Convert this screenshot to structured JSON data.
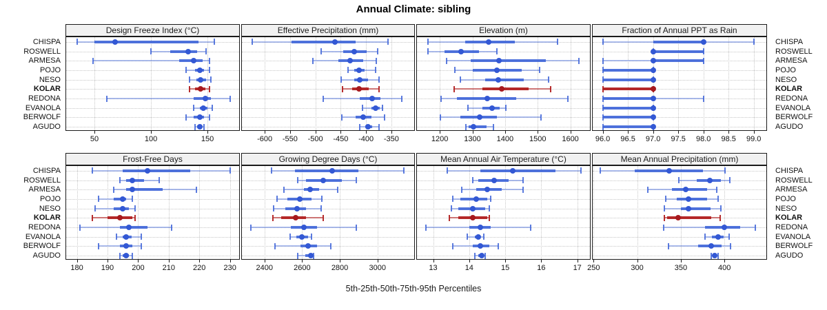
{
  "title": "Annual Climate: sibling",
  "caption": "5th-25th-50th-75th-95th Percentiles",
  "colors": {
    "series_dot": "#3358d4",
    "series_iqr": "rgba(62,100,216,0.88)",
    "series_range": "rgba(62,100,216,0.42)",
    "series_cap": "rgba(62,100,216,0.85)",
    "highlight_dot": "#a6191e",
    "highlight_iqr": "rgba(178,34,34,0.95)",
    "highlight_range": "rgba(178,34,34,0.6)",
    "highlight_cap": "rgba(178,34,34,0.95)",
    "strip_bg": "#f1f1f1",
    "panel_border": "#1a1a1a",
    "grid": "#c6c6c6"
  },
  "chart_data": {
    "type": "dotplot",
    "note": "dot = 50th percentile, thick segment = 25th-75th, thin segment with end caps = 5th-95th",
    "percentiles": [
      5,
      25,
      50,
      75,
      95
    ],
    "rows": [
      "CHISPA",
      "ROSWELL",
      "ARMESA",
      "POJO",
      "NESO",
      "KOLAR",
      "REDONA",
      "EVANOLA",
      "BERWOLF",
      "AGUDO"
    ],
    "highlighted_row": "KOLAR",
    "panels": [
      {
        "title": "Design Freeze Index (°C)",
        "grid_row": 0,
        "grid_col": 0,
        "xlim": [
          25,
          178
        ],
        "ticks": [
          50,
          100,
          150
        ],
        "tick_labels": [
          "50",
          "100",
          "150"
        ],
        "values": [
          [
            35,
            50,
            68,
            142,
            156
          ],
          [
            100,
            117,
            133,
            141,
            149
          ],
          [
            49,
            125,
            138,
            146,
            152
          ],
          [
            131,
            139,
            143,
            147,
            152
          ],
          [
            134,
            140,
            144,
            149,
            153
          ],
          [
            134,
            139,
            144,
            148,
            152
          ],
          [
            61,
            138,
            148,
            153,
            170
          ],
          [
            138,
            143,
            146,
            150,
            154
          ],
          [
            131,
            138,
            143,
            147,
            152
          ],
          [
            139,
            141,
            143,
            145,
            147
          ]
        ]
      },
      {
        "title": "Effective Precipitation (mm)",
        "grid_row": 0,
        "grid_col": 1,
        "xlim": [
          -645,
          -305
        ],
        "ticks": [
          -600,
          -550,
          -500,
          -450,
          -400,
          -350
        ],
        "tick_labels": [
          "-600",
          "-550",
          "-500",
          "-450",
          "-400",
          "-350"
        ],
        "values": [
          [
            -625,
            -547,
            -462,
            -420,
            -357
          ],
          [
            -488,
            -445,
            -424,
            -399,
            -377
          ],
          [
            -505,
            -455,
            -432,
            -405,
            -380
          ],
          [
            -436,
            -424,
            -414,
            -403,
            -381
          ],
          [
            -449,
            -423,
            -412,
            -396,
            -374
          ],
          [
            -447,
            -428,
            -414,
            -395,
            -375
          ],
          [
            -484,
            -412,
            -388,
            -372,
            -330
          ],
          [
            -407,
            -390,
            -381,
            -373,
            -367
          ],
          [
            -448,
            -420,
            -406,
            -389,
            -364
          ],
          [
            -412,
            -402,
            -396,
            -388,
            -375
          ]
        ]
      },
      {
        "title": "Elevation (m)",
        "grid_row": 0,
        "grid_col": 2,
        "xlim": [
          1130,
          1660
        ],
        "ticks": [
          1200,
          1300,
          1400,
          1500,
          1600
        ],
        "tick_labels": [
          "1200",
          "1300",
          "1400",
          "1500",
          "1600"
        ],
        "values": [
          [
            1163,
            1277,
            1349,
            1430,
            1560
          ],
          [
            1164,
            1215,
            1266,
            1320,
            1374
          ],
          [
            1220,
            1295,
            1382,
            1525,
            1626
          ],
          [
            1247,
            1300,
            1374,
            1452,
            1505
          ],
          [
            1264,
            1338,
            1380,
            1458,
            1533
          ],
          [
            1243,
            1330,
            1390,
            1473,
            1540
          ],
          [
            1204,
            1252,
            1345,
            1435,
            1592
          ],
          [
            1287,
            1330,
            1360,
            1383,
            1403
          ],
          [
            1202,
            1262,
            1322,
            1375,
            1510
          ],
          [
            1279,
            1289,
            1303,
            1344,
            1365
          ]
        ]
      },
      {
        "title": "Fraction of Annual PPT as Rain",
        "grid_row": 0,
        "grid_col": 3,
        "xlim": [
          95.8,
          99.25
        ],
        "ticks": [
          96,
          96.5,
          97,
          97.5,
          98,
          98.5,
          99
        ],
        "tick_labels": [
          "96.0",
          "96.5",
          "97.0",
          "97.5",
          "98.0",
          "98.5",
          "99.0"
        ],
        "values": [
          [
            96,
            97,
            98,
            98,
            99
          ],
          [
            97,
            97,
            97,
            98,
            98
          ],
          [
            96,
            97,
            97,
            98,
            98
          ],
          [
            96,
            96,
            97,
            97,
            97
          ],
          [
            96,
            96,
            97,
            97,
            97
          ],
          [
            96,
            96,
            97,
            97,
            97
          ],
          [
            96,
            96,
            97,
            97,
            98
          ],
          [
            96,
            96,
            97,
            97,
            97
          ],
          [
            96,
            96,
            97,
            97,
            97
          ],
          [
            96,
            96,
            97,
            97,
            97
          ]
        ]
      },
      {
        "title": "Frost-Free Days",
        "grid_row": 1,
        "grid_col": 0,
        "xlim": [
          176.5,
          233
        ],
        "ticks": [
          180,
          190,
          200,
          210,
          220,
          230
        ],
        "tick_labels": [
          "180",
          "190",
          "200",
          "210",
          "220",
          "230"
        ],
        "values": [
          [
            185,
            195,
            203,
            217,
            230
          ],
          [
            194,
            196,
            198,
            202,
            207
          ],
          [
            192,
            196,
            198,
            208,
            219
          ],
          [
            187,
            192,
            195,
            196,
            198
          ],
          [
            186,
            192,
            195,
            197,
            199
          ],
          [
            185,
            190,
            194,
            198,
            199
          ],
          [
            181,
            194,
            197,
            203,
            211
          ],
          [
            193,
            195,
            196,
            198,
            201
          ],
          [
            187,
            194,
            196,
            198,
            201
          ],
          [
            194,
            195,
            196,
            197,
            198
          ]
        ]
      },
      {
        "title": "Growing Degree Days (°C)",
        "grid_row": 1,
        "grid_col": 1,
        "xlim": [
          2280,
          3195
        ],
        "ticks": [
          2400,
          2600,
          2800,
          3000
        ],
        "tick_labels": [
          "2400",
          "2600",
          "2800",
          "3000"
        ],
        "values": [
          [
            2436,
            2560,
            2760,
            2900,
            3140
          ],
          [
            2578,
            2620,
            2713,
            2810,
            2887
          ],
          [
            2502,
            2610,
            2644,
            2690,
            2790
          ],
          [
            2465,
            2520,
            2589,
            2650,
            2705
          ],
          [
            2447,
            2510,
            2571,
            2620,
            2700
          ],
          [
            2443,
            2490,
            2567,
            2620,
            2713
          ],
          [
            2327,
            2540,
            2610,
            2680,
            2887
          ],
          [
            2535,
            2570,
            2600,
            2630,
            2651
          ],
          [
            2455,
            2590,
            2632,
            2680,
            2753
          ],
          [
            2578,
            2615,
            2645,
            2655,
            2660
          ]
        ]
      },
      {
        "title": "Mean Annual Air Temperature (°C)",
        "grid_row": 1,
        "grid_col": 2,
        "xlim": [
          12.55,
          17.35
        ],
        "ticks": [
          13,
          14,
          15,
          16,
          17
        ],
        "tick_labels": [
          "13",
          "14",
          "15",
          "16",
          "17"
        ],
        "values": [
          [
            13.4,
            14.3,
            15.2,
            16.4,
            17.1
          ],
          [
            14.1,
            14.25,
            14.7,
            15.1,
            15.5
          ],
          [
            13.8,
            14.2,
            14.5,
            14.9,
            15.5
          ],
          [
            13.55,
            13.75,
            14.2,
            14.5,
            14.6
          ],
          [
            13.5,
            13.7,
            14.1,
            14.45,
            14.55
          ],
          [
            13.45,
            13.7,
            14.1,
            14.5,
            14.55
          ],
          [
            12.8,
            14.0,
            14.3,
            14.6,
            15.7
          ],
          [
            13.95,
            14.15,
            14.25,
            14.3,
            14.4
          ],
          [
            13.55,
            14.1,
            14.3,
            14.55,
            14.8
          ],
          [
            14.15,
            14.25,
            14.35,
            14.4,
            14.45
          ]
        ]
      },
      {
        "title": "Mean Annual Precipitation (mm)",
        "grid_row": 1,
        "grid_col": 3,
        "xlim": [
          249,
          448
        ],
        "ticks": [
          250,
          300,
          350,
          400
        ],
        "tick_labels": [
          "250",
          "300",
          "350",
          "400"
        ],
        "values": [
          [
            258,
            297,
            337,
            375,
            401
          ],
          [
            348,
            368,
            383,
            396,
            406
          ],
          [
            312,
            340,
            356,
            380,
            391
          ],
          [
            333,
            345,
            359,
            380,
            393
          ],
          [
            331,
            350,
            359,
            384,
            396
          ],
          [
            331,
            334,
            347,
            385,
            395
          ],
          [
            330,
            378,
            400,
            418,
            435
          ],
          [
            378,
            386,
            393,
            399,
            405
          ],
          [
            336,
            370,
            385,
            397,
            407
          ],
          [
            385,
            387,
            389,
            391,
            393
          ]
        ]
      }
    ]
  }
}
